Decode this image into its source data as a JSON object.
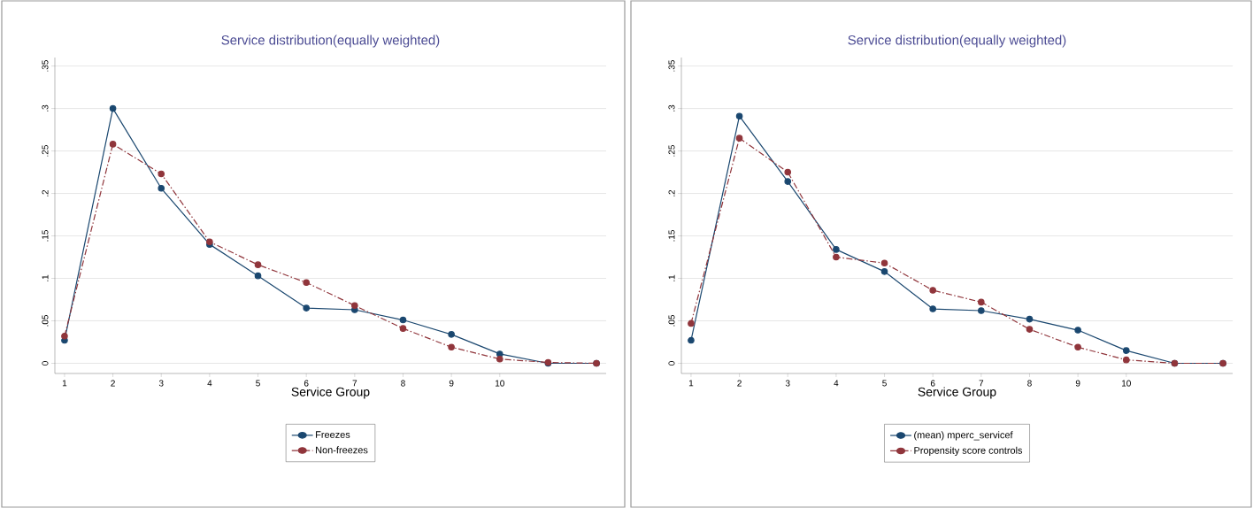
{
  "chart_data": [
    {
      "type": "line",
      "title": "Service distribution(equally weighted)",
      "xlabel": "Service Group",
      "x": [
        1,
        2,
        3,
        4,
        5,
        6,
        7,
        8,
        9,
        10,
        11,
        12
      ],
      "series": [
        {
          "name": "Freezes",
          "color": "#1a476f",
          "line_style": "solid",
          "values": [
            0.027,
            0.3,
            0.206,
            0.14,
            0.103,
            0.065,
            0.063,
            0.051,
            0.034,
            0.011,
            0,
            0
          ]
        },
        {
          "name": "Non-freezes",
          "color": "#90353b",
          "line_style": "dashdot",
          "values": [
            0.032,
            0.258,
            0.223,
            0.143,
            0.116,
            0.095,
            0.068,
            0.041,
            0.019,
            0.005,
            0.001,
            0
          ]
        }
      ],
      "xlim": [
        0.8,
        12.2
      ],
      "ylim": [
        -0.012,
        0.36
      ],
      "xticks": [
        1,
        2,
        3,
        4,
        5,
        6,
        7,
        8,
        9,
        10
      ],
      "yticks": [
        0,
        {
          "value": 0.05,
          "label": ".05"
        },
        {
          "value": 0.1,
          "label": ".1"
        },
        {
          "value": 0.15,
          "label": ".15"
        },
        {
          "value": 0.2,
          "label": ".2"
        },
        {
          "value": 0.25,
          "label": ".25"
        },
        {
          "value": 0.3,
          "label": ".3"
        },
        {
          "value": 0.35,
          "label": ".35"
        }
      ],
      "grid": "y",
      "legend": "bottom",
      "marker": "circle"
    },
    {
      "type": "line",
      "title": "Service distribution(equally weighted)",
      "xlabel": "Service Group",
      "x": [
        1,
        2,
        3,
        4,
        5,
        6,
        7,
        8,
        9,
        10,
        11,
        12
      ],
      "series": [
        {
          "name": "(mean) mperc_servicef",
          "color": "#1a476f",
          "line_style": "solid",
          "values": [
            0.027,
            0.291,
            0.214,
            0.134,
            0.108,
            0.064,
            0.062,
            0.052,
            0.039,
            0.015,
            0,
            0
          ]
        },
        {
          "name": "Propensity score controls",
          "color": "#90353b",
          "line_style": "dashdot",
          "values": [
            0.047,
            0.265,
            0.225,
            0.125,
            0.118,
            0.086,
            0.072,
            0.04,
            0.019,
            0.004,
            0,
            0
          ]
        }
      ],
      "xlim": [
        0.8,
        12.2
      ],
      "ylim": [
        -0.012,
        0.36
      ],
      "xticks": [
        1,
        2,
        3,
        4,
        5,
        6,
        7,
        8,
        9,
        10
      ],
      "yticks": [
        0,
        {
          "value": 0.05,
          "label": ".05"
        },
        {
          "value": 0.1,
          "label": ".1"
        },
        {
          "value": 0.15,
          "label": ".15"
        },
        {
          "value": 0.2,
          "label": ".2"
        },
        {
          "value": 0.25,
          "label": ".25"
        },
        {
          "value": 0.3,
          "label": ".3"
        },
        {
          "value": 0.35,
          "label": ".35"
        }
      ],
      "grid": "y",
      "legend": "bottom",
      "marker": "circle"
    }
  ]
}
